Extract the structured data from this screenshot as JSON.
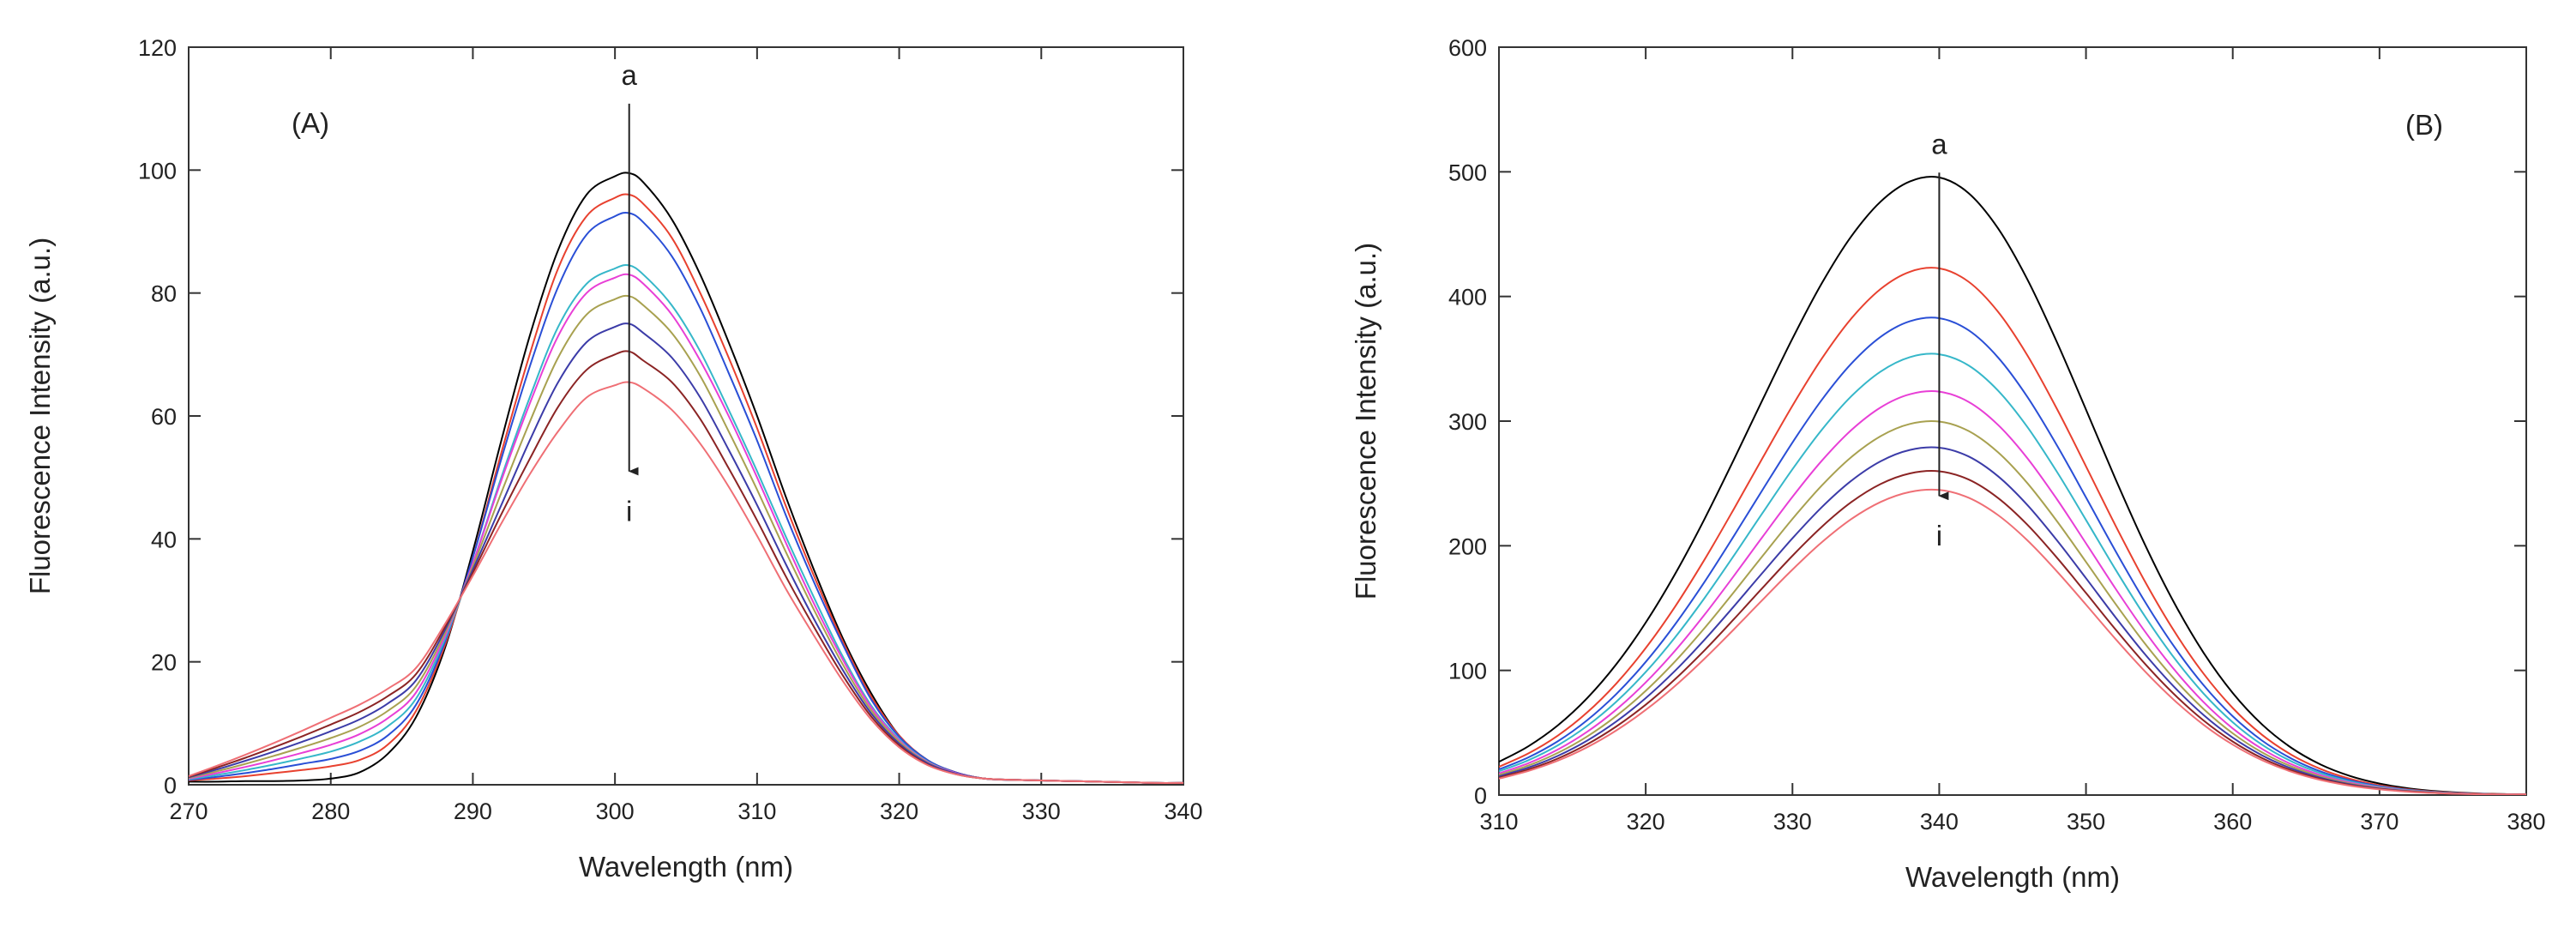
{
  "chart_data": [
    {
      "type": "line",
      "panel_label": "(A)",
      "xlabel": "Wavelength (nm)",
      "ylabel": "Fluorescence Intensity (a.u.)",
      "xlim": [
        270,
        340
      ],
      "ylim": [
        0,
        120
      ],
      "xticks": [
        270,
        280,
        290,
        300,
        310,
        320,
        330,
        340
      ],
      "yticks": [
        0,
        20,
        40,
        60,
        80,
        100,
        120
      ],
      "arrow": {
        "start_label": "a",
        "end_label": "i",
        "x": 301,
        "y_start": 115,
        "y_end": 51
      },
      "grid": false,
      "x": [
        270,
        272,
        274,
        276,
        278,
        280,
        282,
        284,
        286,
        288,
        290,
        292,
        294,
        296,
        298,
        300,
        301,
        302,
        304,
        306,
        308,
        310,
        312,
        314,
        316,
        318,
        320,
        322,
        324,
        326,
        328,
        330,
        332,
        334,
        336,
        338,
        340
      ],
      "series": [
        {
          "color": "#000000",
          "values": [
            0.5,
            0.5,
            0.6,
            0.6,
            0.7,
            1,
            2,
            5,
            11,
            22,
            38,
            56,
            73,
            87,
            96,
            99,
            99.5,
            98,
            92,
            83,
            72,
            60,
            47,
            35,
            24,
            15,
            8,
            4,
            2,
            1,
            0.8,
            0.7,
            0.6,
            0.5,
            0.4,
            0.3,
            0.3
          ]
        },
        {
          "color": "#e8412f",
          "values": [
            0.7,
            1,
            1.4,
            1.9,
            2.4,
            3,
            4,
            6.5,
            12,
            22.5,
            37,
            54,
            70,
            84,
            92.5,
            95.5,
            96,
            94.5,
            89,
            80,
            69.5,
            58,
            45.5,
            34,
            23.5,
            14.5,
            8,
            4,
            2,
            1,
            0.8,
            0.7,
            0.6,
            0.5,
            0.4,
            0.3,
            0.3
          ]
        },
        {
          "color": "#2a4fd6",
          "values": [
            0.8,
            1.3,
            1.9,
            2.6,
            3.4,
            4.2,
            5.5,
            8,
            13,
            23,
            37,
            53,
            68,
            81,
            89.5,
            92.5,
            93,
            91.5,
            86,
            77.5,
            67,
            56,
            44,
            33,
            23,
            14,
            7.8,
            4,
            2,
            1,
            0.8,
            0.7,
            0.6,
            0.5,
            0.4,
            0.3,
            0.3
          ]
        },
        {
          "color": "#36b7c9",
          "values": [
            0.9,
            1.6,
            2.4,
            3.3,
            4.3,
            5.4,
            7,
            9.5,
            14,
            23.5,
            36,
            50,
            63,
            74.5,
            81.5,
            84,
            84.5,
            83,
            78,
            70.5,
            61,
            51,
            40.5,
            30.5,
            21,
            13,
            7.4,
            3.8,
            1.9,
            1,
            0.8,
            0.7,
            0.6,
            0.5,
            0.4,
            0.3,
            0.3
          ]
        },
        {
          "color": "#e83fd6",
          "values": [
            1,
            1.9,
            2.9,
            4,
            5.2,
            6.5,
            8.2,
            10.8,
            15,
            24,
            36,
            49.5,
            62,
            73,
            80,
            82.5,
            83,
            81.5,
            76.5,
            69,
            60,
            50,
            39.5,
            29.5,
            20.5,
            12.7,
            7.2,
            3.7,
            1.9,
            1,
            0.8,
            0.7,
            0.6,
            0.5,
            0.4,
            0.3,
            0.3
          ]
        },
        {
          "color": "#a8a150",
          "values": [
            1.1,
            2.2,
            3.4,
            4.7,
            6.1,
            7.6,
            9.4,
            12,
            16,
            24.5,
            35.5,
            47.5,
            59,
            69.5,
            76.5,
            79,
            79.5,
            78,
            73.5,
            66.5,
            57.5,
            48,
            38,
            28.5,
            19.7,
            12.2,
            7,
            3.6,
            1.8,
            1,
            0.8,
            0.7,
            0.6,
            0.5,
            0.4,
            0.3,
            0.3
          ]
        },
        {
          "color": "#3c3ca8",
          "values": [
            1.2,
            2.5,
            3.9,
            5.4,
            7,
            8.7,
            10.6,
            13.2,
            17,
            25,
            35,
            45.5,
            56,
            65.5,
            72,
            74.5,
            75,
            73.5,
            69.5,
            63,
            54.5,
            45.5,
            36,
            27,
            18.8,
            11.7,
            6.7,
            3.5,
            1.8,
            1,
            0.8,
            0.7,
            0.6,
            0.5,
            0.4,
            0.3,
            0.3
          ]
        },
        {
          "color": "#8b2424",
          "values": [
            1.3,
            2.8,
            4.4,
            6.1,
            7.9,
            9.8,
            11.8,
            14.4,
            18,
            25.5,
            34.5,
            44,
            53,
            61.5,
            67.5,
            70,
            70.5,
            69,
            65.5,
            59.5,
            51.5,
            43,
            34,
            25.7,
            17.9,
            11.2,
            6.4,
            3.3,
            1.7,
            1,
            0.8,
            0.7,
            0.6,
            0.5,
            0.4,
            0.3,
            0.3
          ]
        },
        {
          "color": "#ef6f75",
          "values": [
            1.4,
            3.1,
            4.9,
            6.8,
            8.8,
            10.9,
            13,
            15.6,
            19,
            26,
            34,
            42.5,
            50.5,
            57.5,
            63,
            65,
            65.5,
            64.5,
            61,
            55.5,
            48.5,
            40.5,
            32,
            24.3,
            17,
            10.7,
            6.1,
            3.2,
            1.7,
            1,
            0.8,
            0.7,
            0.6,
            0.5,
            0.4,
            0.3,
            0.3
          ]
        }
      ]
    },
    {
      "type": "line",
      "panel_label": "(B)",
      "xlabel": "Wavelength (nm)",
      "ylabel": "Fluorescence Intensity (a.u.)",
      "xlim": [
        310,
        380
      ],
      "ylim": [
        0,
        600
      ],
      "xticks": [
        310,
        320,
        330,
        340,
        350,
        360,
        370,
        380
      ],
      "yticks": [
        0,
        100,
        200,
        300,
        400,
        500,
        600
      ],
      "arrow": {
        "start_label": "a",
        "end_label": "i",
        "x": 340,
        "y_start": 520,
        "y_end": 240
      },
      "grid": false,
      "x": [
        310,
        312,
        314,
        316,
        318,
        320,
        322,
        324,
        326,
        328,
        330,
        332,
        334,
        336,
        338,
        340,
        342,
        344,
        346,
        348,
        350,
        352,
        354,
        356,
        358,
        360,
        362,
        364,
        366,
        368,
        370,
        372,
        374,
        376,
        378,
        380
      ],
      "series": [
        {
          "color": "#000000",
          "peak": 496
        },
        {
          "color": "#e8412f",
          "peak": 423
        },
        {
          "color": "#2a4fd6",
          "peak": 383
        },
        {
          "color": "#36b7c9",
          "peak": 354
        },
        {
          "color": "#e83fd6",
          "peak": 324
        },
        {
          "color": "#a8a150",
          "peak": 300
        },
        {
          "color": "#3c3ca8",
          "peak": 279
        },
        {
          "color": "#8b2424",
          "peak": 260
        },
        {
          "color": "#ef6f75",
          "peak": 245
        }
      ]
    }
  ]
}
